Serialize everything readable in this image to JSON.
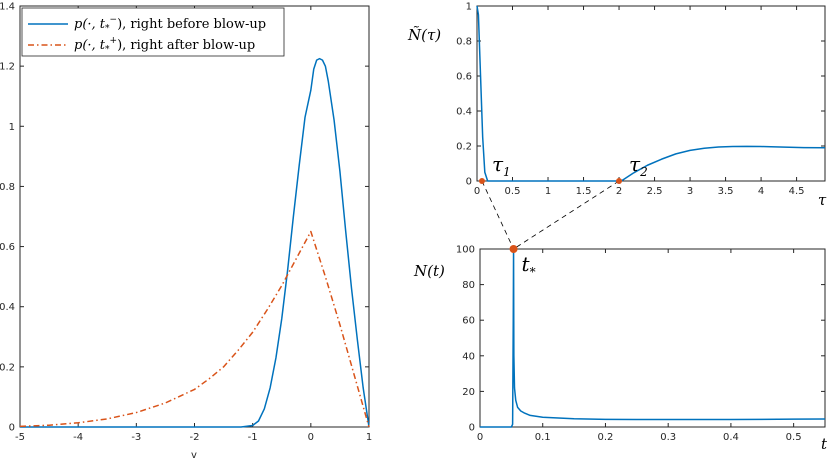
{
  "colors": {
    "blue": "#0072BD",
    "orange": "#D95319",
    "axis": "#262626"
  },
  "chart_data": [
    {
      "id": "left",
      "type": "line",
      "xlabel": "v",
      "xlim": [
        -5,
        1
      ],
      "ylim": [
        0,
        1.4
      ],
      "xticks": [
        -5,
        -4,
        -3,
        -2,
        -1,
        0,
        1
      ],
      "yticks": [
        0,
        0.2,
        0.4,
        0.6,
        0.8,
        1,
        1.2,
        1.4
      ],
      "legend": {
        "position": "top-left"
      },
      "series": [
        {
          "name": "p(·,t*−), right before blow-up",
          "legend_math": "p(·, t",
          "legend_sup": "−",
          "legend_rest": "), right before blow-up",
          "color": "#0072BD",
          "style": "solid",
          "x": [
            -5,
            -1.2,
            -1.0,
            -0.9,
            -0.8,
            -0.7,
            -0.6,
            -0.5,
            -0.4,
            -0.3,
            -0.2,
            -0.1,
            0.0,
            0.05,
            0.1,
            0.15,
            0.2,
            0.25,
            0.3,
            0.4,
            0.5,
            0.6,
            0.7,
            0.8,
            0.9,
            1.0
          ],
          "y": [
            0,
            0,
            0.005,
            0.02,
            0.06,
            0.13,
            0.23,
            0.36,
            0.52,
            0.7,
            0.87,
            1.03,
            1.12,
            1.19,
            1.22,
            1.225,
            1.22,
            1.2,
            1.15,
            1.02,
            0.85,
            0.65,
            0.46,
            0.29,
            0.13,
            0
          ]
        },
        {
          "name": "p(·,t*+), right after blow-up",
          "legend_math": "p(·, t",
          "legend_sup": "+",
          "legend_rest": "), right after blow-up",
          "color": "#D95319",
          "style": "dashdot",
          "x": [
            -5,
            -4.5,
            -4,
            -3.5,
            -3,
            -2.5,
            -2,
            -1.75,
            -1.5,
            -1.25,
            -1,
            -0.75,
            -0.5,
            -0.25,
            0,
            0.25,
            0.5,
            0.75,
            1.0
          ],
          "y": [
            0.002,
            0.006,
            0.014,
            0.027,
            0.048,
            0.08,
            0.125,
            0.16,
            0.2,
            0.255,
            0.315,
            0.39,
            0.47,
            0.56,
            0.65,
            0.5,
            0.34,
            0.17,
            0
          ]
        }
      ]
    },
    {
      "id": "top-right",
      "type": "line",
      "xlabel": "τ",
      "ylabel": "Ñ(τ)",
      "xlim": [
        0,
        4.9
      ],
      "ylim": [
        0,
        1
      ],
      "xticks": [
        0,
        0.5,
        1,
        1.5,
        2,
        2.5,
        3,
        3.5,
        4,
        4.5
      ],
      "yticks": [
        0,
        0.2,
        0.4,
        0.6,
        0.8,
        1
      ],
      "series": [
        {
          "color": "#0072BD",
          "x": [
            0,
            0.02,
            0.05,
            0.08,
            0.11,
            0.15,
            0.2,
            2.0,
            2.05,
            2.2,
            2.4,
            2.6,
            2.8,
            3.0,
            3.2,
            3.4,
            3.6,
            3.8,
            4.0,
            4.2,
            4.4,
            4.6,
            4.9
          ],
          "y": [
            1,
            0.95,
            0.6,
            0.25,
            0.05,
            0.0,
            0,
            0,
            0.005,
            0.045,
            0.09,
            0.125,
            0.155,
            0.175,
            0.187,
            0.194,
            0.197,
            0.198,
            0.197,
            0.195,
            0.193,
            0.191,
            0.19
          ]
        }
      ],
      "points": [
        {
          "label": "τ1",
          "label_main": "τ",
          "label_sub": "1",
          "x": 0.07,
          "y": 0
        },
        {
          "label": "τ2",
          "label_main": "τ",
          "label_sub": "2",
          "x": 2.0,
          "y": 0
        }
      ]
    },
    {
      "id": "bottom-right",
      "type": "line",
      "xlabel": "t",
      "ylabel": "N(t)",
      "xlim": [
        0,
        0.55
      ],
      "ylim": [
        0,
        100
      ],
      "xticks": [
        0,
        0.1,
        0.2,
        0.3,
        0.4,
        0.5
      ],
      "yticks": [
        0,
        20,
        40,
        60,
        80,
        100
      ],
      "series": [
        {
          "color": "#0072BD",
          "x": [
            0,
            0.05,
            0.052,
            0.053,
            0.0535,
            0.054,
            0.055,
            0.057,
            0.06,
            0.065,
            0.07,
            0.08,
            0.1,
            0.15,
            0.2,
            0.25,
            0.3,
            0.35,
            0.4,
            0.45,
            0.5,
            0.55
          ],
          "y": [
            0,
            0,
            1.5,
            60,
            100,
            40,
            22,
            15,
            11,
            9,
            8,
            6.5,
            5.5,
            4.6,
            4.3,
            4.2,
            4.2,
            4.2,
            4.2,
            4.3,
            4.4,
            4.5
          ]
        }
      ],
      "points": [
        {
          "label": "t*",
          "label_main": "t",
          "label_sub": "*",
          "x": 0.0535,
          "y": 100
        }
      ]
    }
  ]
}
